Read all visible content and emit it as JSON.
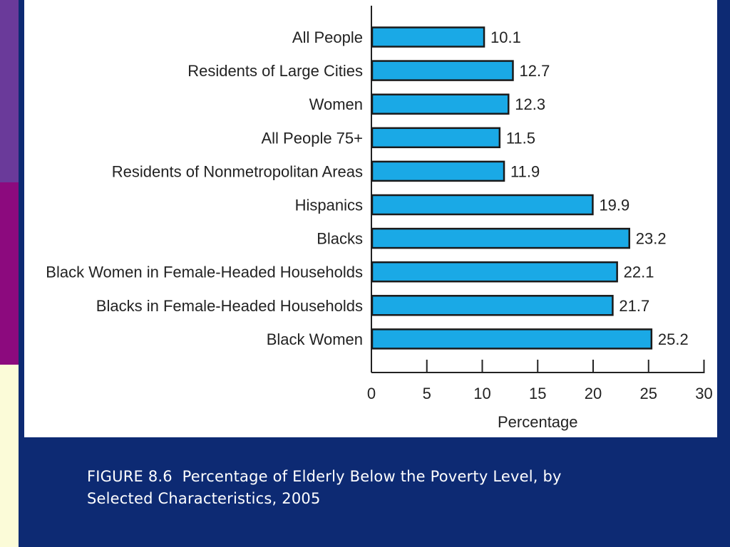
{
  "colors": {
    "background": "#0d2a73",
    "panel": "#ffffff",
    "bar_fill": "#1aa9e6",
    "bar_stroke": "#1a1a1a",
    "strip_top": "#6a3a9a",
    "strip_mid": "#8c0a7e",
    "strip_bottom": "#fbfbd8"
  },
  "caption": {
    "line1": "FIGURE 8.6  Percentage of Elderly Below the Poverty Level, by",
    "line2": "Selected Characteristics, 2005"
  },
  "chart_data": {
    "type": "bar",
    "orientation": "horizontal",
    "categories": [
      "All People",
      "Residents of Large Cities",
      "Women",
      "All People 75+",
      "Residents of Nonmetropolitan Areas",
      "Hispanics",
      "Blacks",
      "Black Women in Female-Headed Households",
      "Blacks in Female-Headed Households",
      "Black Women"
    ],
    "values": [
      10.1,
      12.7,
      12.3,
      11.5,
      11.9,
      19.9,
      23.2,
      22.1,
      21.7,
      25.2
    ],
    "value_labels": [
      "10.1",
      "12.7",
      "12.3",
      "11.5",
      "11.9",
      "19.9",
      "23.2",
      "22.1",
      "21.7",
      "25.2"
    ],
    "xlabel": "Percentage",
    "xlim": [
      0,
      30
    ],
    "xticks": [
      0,
      5,
      10,
      15,
      20,
      25,
      30
    ],
    "grid": false,
    "legend": "none"
  }
}
